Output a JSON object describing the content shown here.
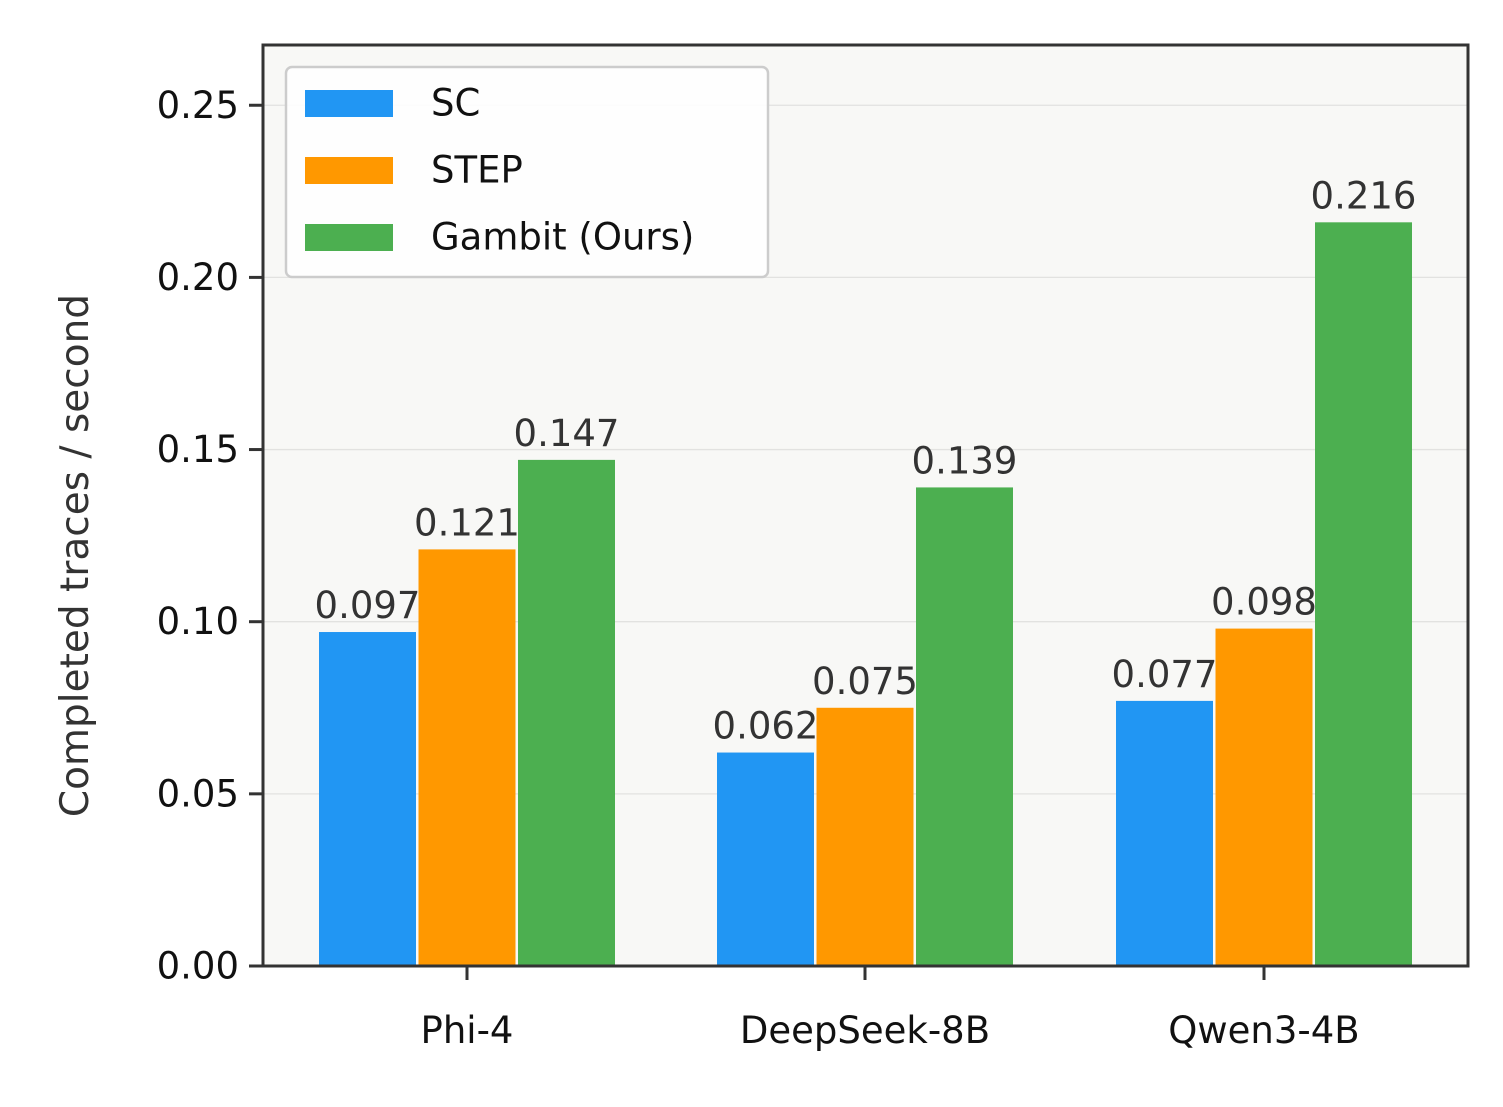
{
  "chart_data": {
    "type": "bar",
    "title": "",
    "xlabel": "",
    "ylabel": "Completed traces / second",
    "categories": [
      "Phi-4",
      "DeepSeek-8B",
      "Qwen3-4B"
    ],
    "series": [
      {
        "name": "SC",
        "color": "#2196F3",
        "values": [
          0.097,
          0.062,
          0.077
        ],
        "labels": [
          "0.097",
          "0.062",
          "0.077"
        ]
      },
      {
        "name": "STEP",
        "color": "#FF9800",
        "values": [
          0.121,
          0.075,
          0.098
        ],
        "labels": [
          "0.121",
          "0.075",
          "0.098"
        ]
      },
      {
        "name": "Gambit (Ours)",
        "color": "#4CAF50",
        "values": [
          0.147,
          0.139,
          0.216
        ],
        "labels": [
          "0.147",
          "0.139",
          "0.216"
        ]
      }
    ],
    "ylim": [
      0,
      0.2675
    ],
    "yticks": [
      "0.00",
      "0.05",
      "0.10",
      "0.15",
      "0.20",
      "0.25"
    ],
    "grid": "horizontal",
    "legend_position": "top-left",
    "background_color": "#f8f8f6"
  }
}
